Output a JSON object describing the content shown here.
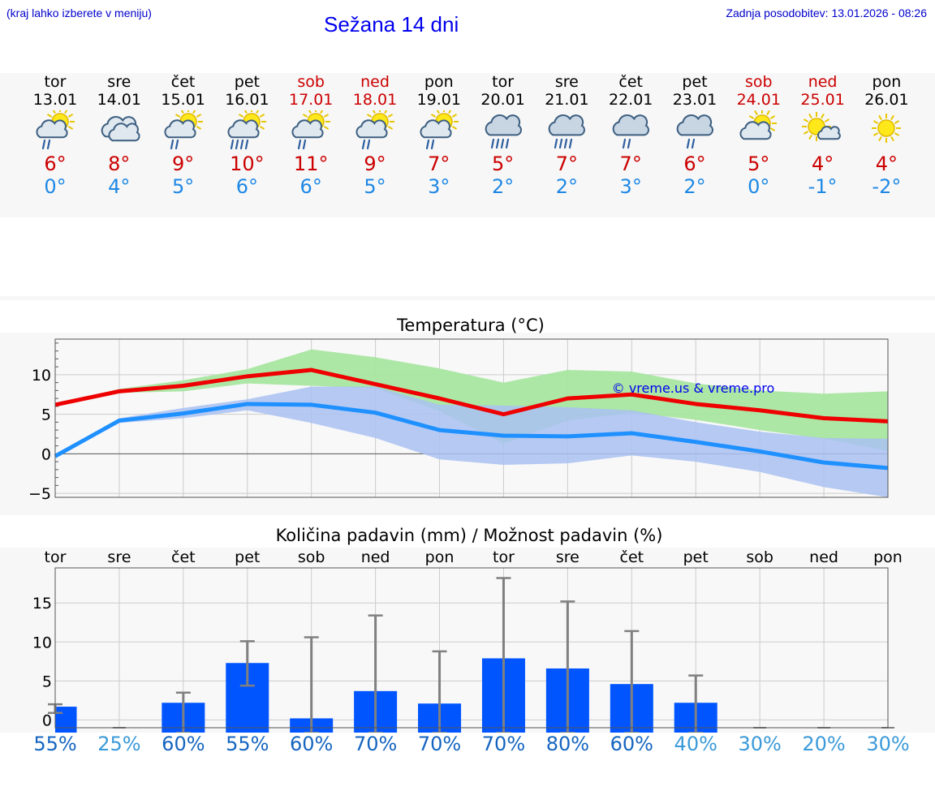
{
  "header": {
    "menu_note": "(kraj lahko izberete v meniju)",
    "title": "Sežana 14 dni",
    "updated": "Zadnja posodobitev: 13.01.2026 - 08:26"
  },
  "days": [
    {
      "name": "tor",
      "date": "13.01",
      "weekend": false,
      "icon": "sun-cloud-rain-icon",
      "tmax": "6°",
      "tmin": "0°"
    },
    {
      "name": "sre",
      "date": "14.01",
      "weekend": false,
      "icon": "cloud-icon",
      "tmax": "8°",
      "tmin": "4°"
    },
    {
      "name": "čet",
      "date": "15.01",
      "weekend": false,
      "icon": "sun-cloud-rain-icon",
      "tmax": "9°",
      "tmin": "5°"
    },
    {
      "name": "pet",
      "date": "16.01",
      "weekend": false,
      "icon": "sun-cloud-heavy-rain-icon",
      "tmax": "10°",
      "tmin": "6°"
    },
    {
      "name": "sob",
      "date": "17.01",
      "weekend": true,
      "icon": "sun-cloud-rain-icon",
      "tmax": "11°",
      "tmin": "6°"
    },
    {
      "name": "ned",
      "date": "18.01",
      "weekend": true,
      "icon": "sun-cloud-rain-icon",
      "tmax": "9°",
      "tmin": "5°"
    },
    {
      "name": "pon",
      "date": "19.01",
      "weekend": false,
      "icon": "sun-cloud-rain-icon",
      "tmax": "7°",
      "tmin": "3°"
    },
    {
      "name": "tor",
      "date": "20.01",
      "weekend": false,
      "icon": "cloud-heavy-rain-icon",
      "tmax": "5°",
      "tmin": "2°"
    },
    {
      "name": "sre",
      "date": "21.01",
      "weekend": false,
      "icon": "cloud-heavy-rain-icon",
      "tmax": "7°",
      "tmin": "2°"
    },
    {
      "name": "čet",
      "date": "22.01",
      "weekend": false,
      "icon": "cloud-rain-icon",
      "tmax": "7°",
      "tmin": "3°"
    },
    {
      "name": "pet",
      "date": "23.01",
      "weekend": false,
      "icon": "cloud-rain-icon",
      "tmax": "6°",
      "tmin": "2°"
    },
    {
      "name": "sob",
      "date": "24.01",
      "weekend": true,
      "icon": "sun-cloud-icon",
      "tmax": "5°",
      "tmin": "0°"
    },
    {
      "name": "ned",
      "date": "25.01",
      "weekend": true,
      "icon": "sun-small-cloud-icon",
      "tmax": "4°",
      "tmin": "-1°"
    },
    {
      "name": "pon",
      "date": "26.01",
      "weekend": false,
      "icon": "sun-icon",
      "tmax": "4°",
      "tmin": "-2°"
    }
  ],
  "colors": {
    "max": "#ee0000",
    "min": "#1e90ff",
    "maxband": "#a8e6a0",
    "minband": "#a9c1f2",
    "bar": "#0055ff",
    "whisker": "#808080"
  },
  "chart_data": [
    {
      "type": "line",
      "title": "Temperatura (°C)",
      "ylim": [
        -5.5,
        14.5
      ],
      "yticks": [
        -5,
        0,
        5,
        10
      ],
      "ytick_labels": [
        "−5",
        "0",
        "5",
        "10"
      ],
      "watermark": "© vreme.us & vreme.pro",
      "x": [
        0,
        1,
        2,
        3,
        4,
        5,
        6,
        7,
        8,
        9,
        10,
        11,
        12,
        13
      ],
      "series": [
        {
          "name": "max",
          "values": [
            6.2,
            7.9,
            8.6,
            9.8,
            10.6,
            8.8,
            7.0,
            5.0,
            7.0,
            7.5,
            6.3,
            5.5,
            4.5,
            4.1
          ]
        },
        {
          "name": "min",
          "values": [
            -0.3,
            4.2,
            5.1,
            6.3,
            6.2,
            5.2,
            3.0,
            2.3,
            2.2,
            2.6,
            1.5,
            0.3,
            -1.1,
            -1.8
          ]
        }
      ],
      "bands": [
        {
          "name": "max-range",
          "low": [
            6.1,
            7.7,
            7.9,
            8.9,
            8.6,
            8.3,
            5.4,
            1.3,
            4.2,
            5.2,
            4.3,
            3.0,
            1.9,
            0.4
          ],
          "high": [
            6.3,
            8.2,
            9.3,
            10.7,
            13.2,
            12.2,
            10.8,
            9.0,
            10.6,
            10.4,
            8.9,
            8.0,
            7.6,
            7.9
          ]
        },
        {
          "name": "min-range",
          "low": [
            -0.4,
            3.9,
            4.5,
            5.5,
            3.9,
            2.0,
            -0.7,
            -1.4,
            -1.2,
            -0.2,
            -1.0,
            -2.3,
            -4.2,
            -5.5
          ],
          "high": [
            -0.2,
            4.5,
            5.8,
            6.9,
            8.5,
            8.5,
            6.2,
            6.1,
            5.9,
            5.5,
            4.0,
            2.8,
            2.0,
            1.9
          ]
        }
      ]
    },
    {
      "type": "bar",
      "title": "Količina padavin (mm) / Možnost padavin (%)",
      "ylim": [
        -1,
        19.5
      ],
      "yticks": [
        0,
        5,
        10,
        15
      ],
      "categories": [
        "tor",
        "sre",
        "čet",
        "pet",
        "sob",
        "ned",
        "pon",
        "tor",
        "sre",
        "čet",
        "pet",
        "sob",
        "ned",
        "pon"
      ],
      "values": [
        1.7,
        0,
        2.2,
        7.3,
        0.2,
        3.7,
        2.1,
        7.9,
        6.6,
        4.6,
        2.2,
        0,
        0,
        0
      ],
      "error_low": [
        0.9,
        0,
        0,
        4.4,
        0,
        0,
        0,
        0,
        0,
        0,
        0,
        0,
        0,
        0
      ],
      "error_high": [
        2.0,
        0,
        3.5,
        10.1,
        10.6,
        13.4,
        8.8,
        18.2,
        15.2,
        11.4,
        5.7,
        0,
        0,
        0
      ],
      "probability": [
        "55%",
        "25%",
        "60%",
        "55%",
        "60%",
        "70%",
        "70%",
        "70%",
        "80%",
        "60%",
        "40%",
        "30%",
        "20%",
        "30%"
      ],
      "probability_colors": [
        "#1565c0",
        "#3a9ad9",
        "#1565c0",
        "#1565c0",
        "#1565c0",
        "#1565c0",
        "#1565c0",
        "#1565c0",
        "#1565c0",
        "#1565c0",
        "#3a9ad9",
        "#3a9ad9",
        "#3a9ad9",
        "#3a9ad9"
      ]
    }
  ]
}
